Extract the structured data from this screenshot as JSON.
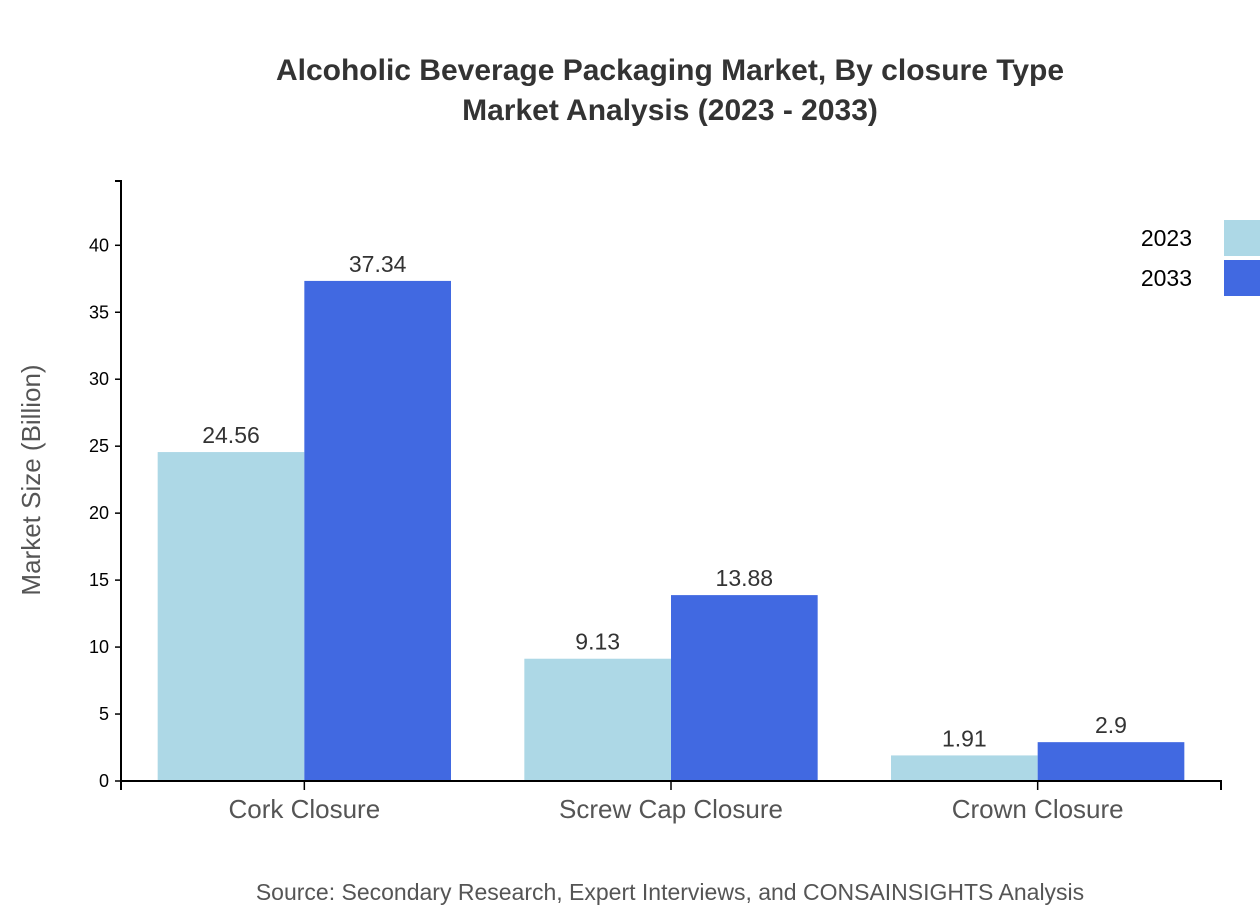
{
  "chart_data": {
    "type": "bar",
    "title": "Alcoholic Beverage Packaging Market, By closure Type",
    "subtitle": "Market Analysis (2023 - 2033)",
    "ylabel": "Market Size (Billion)",
    "xlabel": "",
    "categories": [
      "Cork Closure",
      "Screw Cap Closure",
      "Crown Closure"
    ],
    "series": [
      {
        "name": "2023",
        "color": "#ADD8E6",
        "values": [
          24.56,
          9.13,
          1.91
        ]
      },
      {
        "name": "2033",
        "color": "#4169E1",
        "values": [
          37.34,
          13.88,
          2.9
        ]
      }
    ],
    "ylim": [
      0,
      44.8
    ],
    "yticks": [
      0,
      5,
      10,
      15,
      20,
      25,
      30,
      35,
      40
    ],
    "grid": false,
    "legend_position": "top-right",
    "source": "Source: Secondary Research, Expert Interviews, and CONSAINSIGHTS Analysis"
  }
}
